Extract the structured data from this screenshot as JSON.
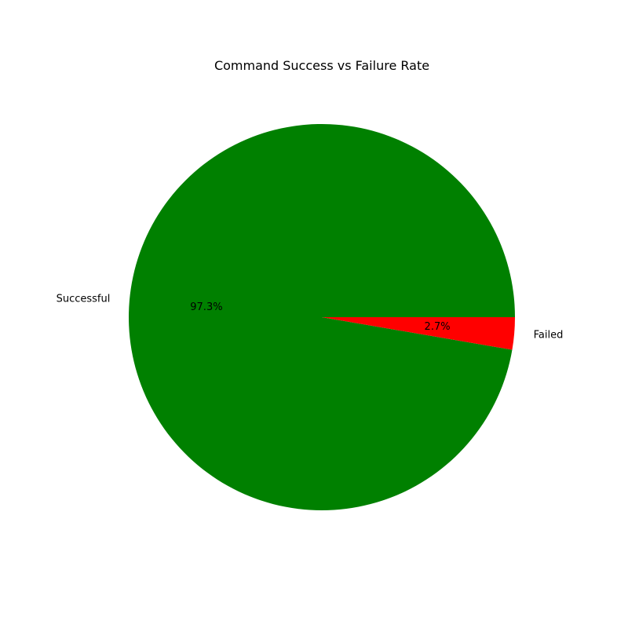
{
  "chart_data": {
    "type": "pie",
    "title": "Command Success vs Failure Rate",
    "categories": [
      "Successful",
      "Failed"
    ],
    "values": [
      97.3,
      2.7
    ],
    "percent_labels": [
      "97.3%",
      "2.7%"
    ],
    "colors": [
      "#008000",
      "#ff0000"
    ],
    "start_angle_deg": 0,
    "direction": "counterclockwise",
    "legend": "none"
  }
}
